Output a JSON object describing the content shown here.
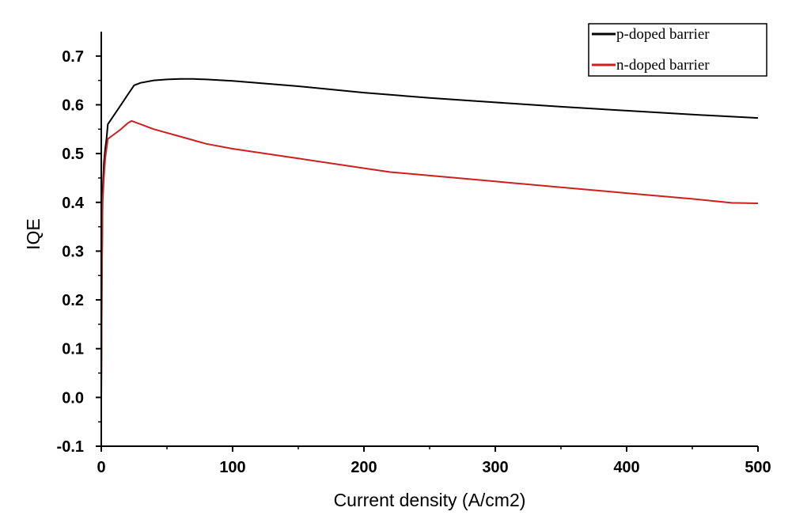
{
  "chart_data": {
    "type": "line",
    "title": "",
    "xlabel": "Current density (A/cm2)",
    "ylabel": "IQE",
    "xlim": [
      0,
      500
    ],
    "ylim": [
      -0.1,
      0.75
    ],
    "xticks": [
      0,
      100,
      200,
      300,
      400,
      500
    ],
    "yticks": [
      -0.1,
      0.0,
      0.1,
      0.2,
      0.3,
      0.4,
      0.5,
      0.6,
      0.7
    ],
    "xtick_labels": [
      "0",
      "100",
      "200",
      "300",
      "400",
      "500"
    ],
    "ytick_labels": [
      "-0.1",
      "0.0",
      "0.1",
      "0.2",
      "0.3",
      "0.4",
      "0.5",
      "0.6",
      "0.7"
    ],
    "grid": false,
    "legend_position": "top-right",
    "series": [
      {
        "name": "p-doped barrier",
        "color": "#000000",
        "x": [
          0,
          0.5,
          1,
          2,
          3,
          4,
          5,
          10,
          15,
          20,
          25,
          30,
          40,
          50,
          60,
          70,
          80,
          100,
          150,
          200,
          250,
          300,
          350,
          400,
          450,
          500
        ],
        "y": [
          0.0,
          0.25,
          0.42,
          0.48,
          0.51,
          0.53,
          0.56,
          0.58,
          0.6,
          0.62,
          0.64,
          0.645,
          0.65,
          0.652,
          0.653,
          0.653,
          0.652,
          0.649,
          0.638,
          0.625,
          0.614,
          0.605,
          0.596,
          0.588,
          0.58,
          0.573
        ]
      },
      {
        "name": "n-doped barrier",
        "color": "#cc2020",
        "x": [
          0,
          0.5,
          1,
          2,
          3,
          4,
          5,
          10,
          15,
          20,
          23,
          30,
          40,
          60,
          80,
          100,
          150,
          200,
          220,
          250,
          300,
          350,
          400,
          450,
          480,
          500
        ],
        "y": [
          0.0,
          0.24,
          0.4,
          0.45,
          0.49,
          0.51,
          0.53,
          0.54,
          0.55,
          0.562,
          0.567,
          0.56,
          0.55,
          0.535,
          0.52,
          0.51,
          0.49,
          0.47,
          0.462,
          0.455,
          0.443,
          0.431,
          0.419,
          0.407,
          0.399,
          0.398
        ]
      }
    ]
  }
}
